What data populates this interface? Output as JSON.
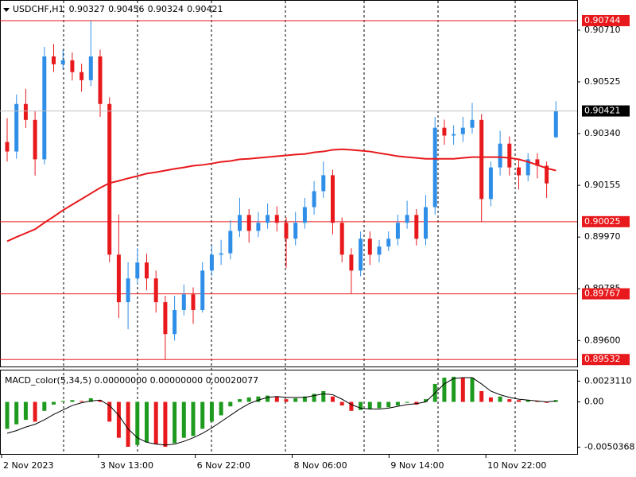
{
  "chart_data": [
    {
      "type": "candlestick",
      "title": "USDCHF,H1",
      "up_color": "#2f8fe8",
      "down_color": "#e8191c",
      "ohlc": [
        [
          0.9031,
          0.90395,
          0.9024,
          0.90276
        ],
        [
          0.90276,
          0.9048,
          0.9025,
          0.90446
        ],
        [
          0.90446,
          0.905,
          0.9036,
          0.90389
        ],
        [
          0.90389,
          0.9042,
          0.9019,
          0.90248
        ],
        [
          0.90248,
          0.9065,
          0.9023,
          0.90616
        ],
        [
          0.90616,
          0.9066,
          0.9056,
          0.90588
        ],
        [
          0.90588,
          0.9064,
          0.9057,
          0.90602
        ],
        [
          0.90602,
          0.9063,
          0.9053,
          0.9056
        ],
        [
          0.9056,
          0.9059,
          0.9049,
          0.90531
        ],
        [
          0.90531,
          0.90744,
          0.9051,
          0.90616
        ],
        [
          0.90616,
          0.9064,
          0.904,
          0.90446
        ],
        [
          0.90446,
          0.9047,
          0.8988,
          0.89907
        ],
        [
          0.89907,
          0.9005,
          0.8968,
          0.89737
        ],
        [
          0.89737,
          0.8988,
          0.8964,
          0.89822
        ],
        [
          0.89822,
          0.8993,
          0.898,
          0.89879
        ],
        [
          0.89879,
          0.8991,
          0.8978,
          0.89822
        ],
        [
          0.89822,
          0.8985,
          0.897,
          0.89737
        ],
        [
          0.89737,
          0.8976,
          0.89532,
          0.89623
        ],
        [
          0.89623,
          0.8976,
          0.896,
          0.89709
        ],
        [
          0.89709,
          0.898,
          0.8969,
          0.89765
        ],
        [
          0.89765,
          0.8979,
          0.8966,
          0.89709
        ],
        [
          0.89709,
          0.8988,
          0.897,
          0.8985
        ],
        [
          0.8985,
          0.8994,
          0.8983,
          0.89907
        ],
        [
          0.89907,
          0.8996,
          0.8987,
          0.89912
        ],
        [
          0.89912,
          0.9003,
          0.8989,
          0.89992
        ],
        [
          0.89992,
          0.9011,
          0.8997,
          0.90049
        ],
        [
          0.90049,
          0.9007,
          0.8995,
          0.89992
        ],
        [
          0.89992,
          0.9006,
          0.8997,
          0.90021
        ],
        [
          0.90021,
          0.9009,
          0.9,
          0.90049
        ],
        [
          0.90049,
          0.9008,
          0.8999,
          0.90021
        ],
        [
          0.90021,
          0.9004,
          0.8986,
          0.89964
        ],
        [
          0.89964,
          0.9006,
          0.8994,
          0.90021
        ],
        [
          0.90021,
          0.9011,
          0.9,
          0.90077
        ],
        [
          0.90077,
          0.9017,
          0.9005,
          0.90134
        ],
        [
          0.90134,
          0.9024,
          0.9011,
          0.90191
        ],
        [
          0.90191,
          0.9021,
          0.8998,
          0.90021
        ],
        [
          0.90021,
          0.9004,
          0.8988,
          0.89907
        ],
        [
          0.89907,
          0.8993,
          0.89767,
          0.8985
        ],
        [
          0.8985,
          0.8999,
          0.8983,
          0.89964
        ],
        [
          0.89964,
          0.8999,
          0.8987,
          0.89907
        ],
        [
          0.89907,
          0.8996,
          0.8988,
          0.89936
        ],
        [
          0.89936,
          0.8999,
          0.8992,
          0.89964
        ],
        [
          0.89964,
          0.9005,
          0.8994,
          0.90021
        ],
        [
          0.90021,
          0.901,
          0.9,
          0.90049
        ],
        [
          0.90049,
          0.9007,
          0.8994,
          0.89964
        ],
        [
          0.89964,
          0.9012,
          0.8994,
          0.90077
        ],
        [
          0.90077,
          0.904,
          0.9005,
          0.90361
        ],
        [
          0.90361,
          0.9039,
          0.903,
          0.90333
        ],
        [
          0.90333,
          0.9037,
          0.903,
          0.90338
        ],
        [
          0.90338,
          0.904,
          0.9031,
          0.90361
        ],
        [
          0.90361,
          0.9045,
          0.9034,
          0.90389
        ],
        [
          0.90389,
          0.9041,
          0.90025,
          0.90106
        ],
        [
          0.90106,
          0.9024,
          0.9008,
          0.90219
        ],
        [
          0.90219,
          0.9035,
          0.9019,
          0.90304
        ],
        [
          0.90304,
          0.9033,
          0.9019,
          0.90219
        ],
        [
          0.90219,
          0.9025,
          0.9014,
          0.90191
        ],
        [
          0.90191,
          0.9027,
          0.9017,
          0.90248
        ],
        [
          0.90248,
          0.9027,
          0.9018,
          0.90225
        ],
        [
          0.90225,
          0.9024,
          0.9011,
          0.90162
        ],
        [
          0.90327,
          0.90456,
          0.90324,
          0.90421
        ]
      ],
      "ma": {
        "color": "#e8191c",
        "values": [
          0.89955,
          0.8997,
          0.89984,
          0.89998,
          0.90021,
          0.90043,
          0.90066,
          0.90086,
          0.90106,
          0.90126,
          0.90146,
          0.90163,
          0.90171,
          0.9018,
          0.90188,
          0.90197,
          0.90202,
          0.90208,
          0.90214,
          0.90219,
          0.90225,
          0.90228,
          0.90233,
          0.90239,
          0.90242,
          0.90248,
          0.9025,
          0.90253,
          0.90256,
          0.90259,
          0.90262,
          0.90265,
          0.90267,
          0.90273,
          0.90276,
          0.90282,
          0.90284,
          0.90282,
          0.90279,
          0.90276,
          0.9027,
          0.90265,
          0.90259,
          0.90256,
          0.90253,
          0.9025,
          0.9025,
          0.9025,
          0.9025,
          0.90253,
          0.90256,
          0.90256,
          0.90256,
          0.90256,
          0.90253,
          0.90248,
          0.90239,
          0.90228,
          0.90216,
          0.90208
        ]
      },
      "levels": [
        0.90744,
        0.90025,
        0.89767,
        0.89532
      ],
      "level_color": "#e8191c",
      "ylim": [
        0.89507,
        0.90815
      ],
      "yticks": [
        {
          "value": 0.9071,
          "label": "0.90710"
        },
        0.90525,
        {
          "value": 0.9034,
          "label": "0.90340"
        },
        0.90155,
        {
          "value": 0.8997,
          "label": "0.89970"
        },
        0.89785,
        {
          "value": 0.896,
          "label": "0.89600"
        }
      ]
    },
    {
      "type": "histogram",
      "title": "MACD_color(5,34,5) 0.00000000 0.00000000 0.00020077",
      "up_color": "#1e9a1e",
      "down_color": "#e8191c",
      "values": [
        -0.003,
        -0.0025,
        -0.002,
        -0.0022,
        -0.001,
        -0.0003,
        0.0001,
        0.0002,
        0.0001,
        0.0004,
        0.0002,
        -0.0022,
        -0.004,
        -0.005,
        -0.0048,
        -0.0045,
        -0.0047,
        -0.005,
        -0.0046,
        -0.004,
        -0.0038,
        -0.003,
        -0.0022,
        -0.0015,
        -0.0005,
        0.0003,
        0.0005,
        0.0006,
        0.0007,
        0.0006,
        0.0003,
        0.0004,
        0.0006,
        0.0009,
        0.0012,
        0.0006,
        -0.0004,
        -0.001,
        -0.0009,
        -0.0008,
        -0.0007,
        -0.0006,
        -0.0004,
        -0.0001,
        -0.0003,
        0.0003,
        0.002,
        0.0027,
        0.0028,
        0.0027,
        0.0027,
        0.0012,
        0.0005,
        0.0006,
        0.0003,
        0.0002,
        0.0002,
        0.0001,
        -0.0001,
        0.0002
      ],
      "signal": {
        "color": "#000000",
        "values": [
          -0.0035,
          -0.0032,
          -0.0028,
          -0.0025,
          -0.002,
          -0.0014,
          -0.0009,
          -0.0004,
          -0.0001,
          0.0001,
          0.0002,
          -0.0004,
          -0.0015,
          -0.003,
          -0.004,
          -0.0045,
          -0.0047,
          -0.0048,
          -0.0047,
          -0.0044,
          -0.004,
          -0.0035,
          -0.0029,
          -0.0022,
          -0.0015,
          -0.0008,
          -0.0002,
          0.0002,
          0.0005,
          0.0006,
          0.0005,
          0.0005,
          0.0005,
          0.0007,
          0.0009,
          0.0008,
          0.0003,
          -0.0003,
          -0.0007,
          -0.0008,
          -0.0008,
          -0.0007,
          -0.0005,
          -0.0003,
          -0.0002,
          0.0,
          0.001,
          0.002,
          0.0026,
          0.0027,
          0.0027,
          0.002,
          0.0012,
          0.0008,
          0.0005,
          0.0003,
          0.0002,
          0.0001,
          0.0,
          0.0001
        ]
      },
      "ylim": [
        -0.0058,
        0.0035
      ],
      "yticks": [
        {
          "value": 0.002311,
          "label": "0.0023110"
        },
        {
          "value": 0,
          "label": "0.00"
        },
        {
          "value": -0.0050368,
          "label": "-0.0050368"
        }
      ],
      "x_labels": [
        "2 Nov 2023",
        "3 Nov 13:00",
        "6 Nov 22:00",
        "8 Nov 06:00",
        "9 Nov 14:00",
        "10 Nov 22:00"
      ]
    }
  ]
}
